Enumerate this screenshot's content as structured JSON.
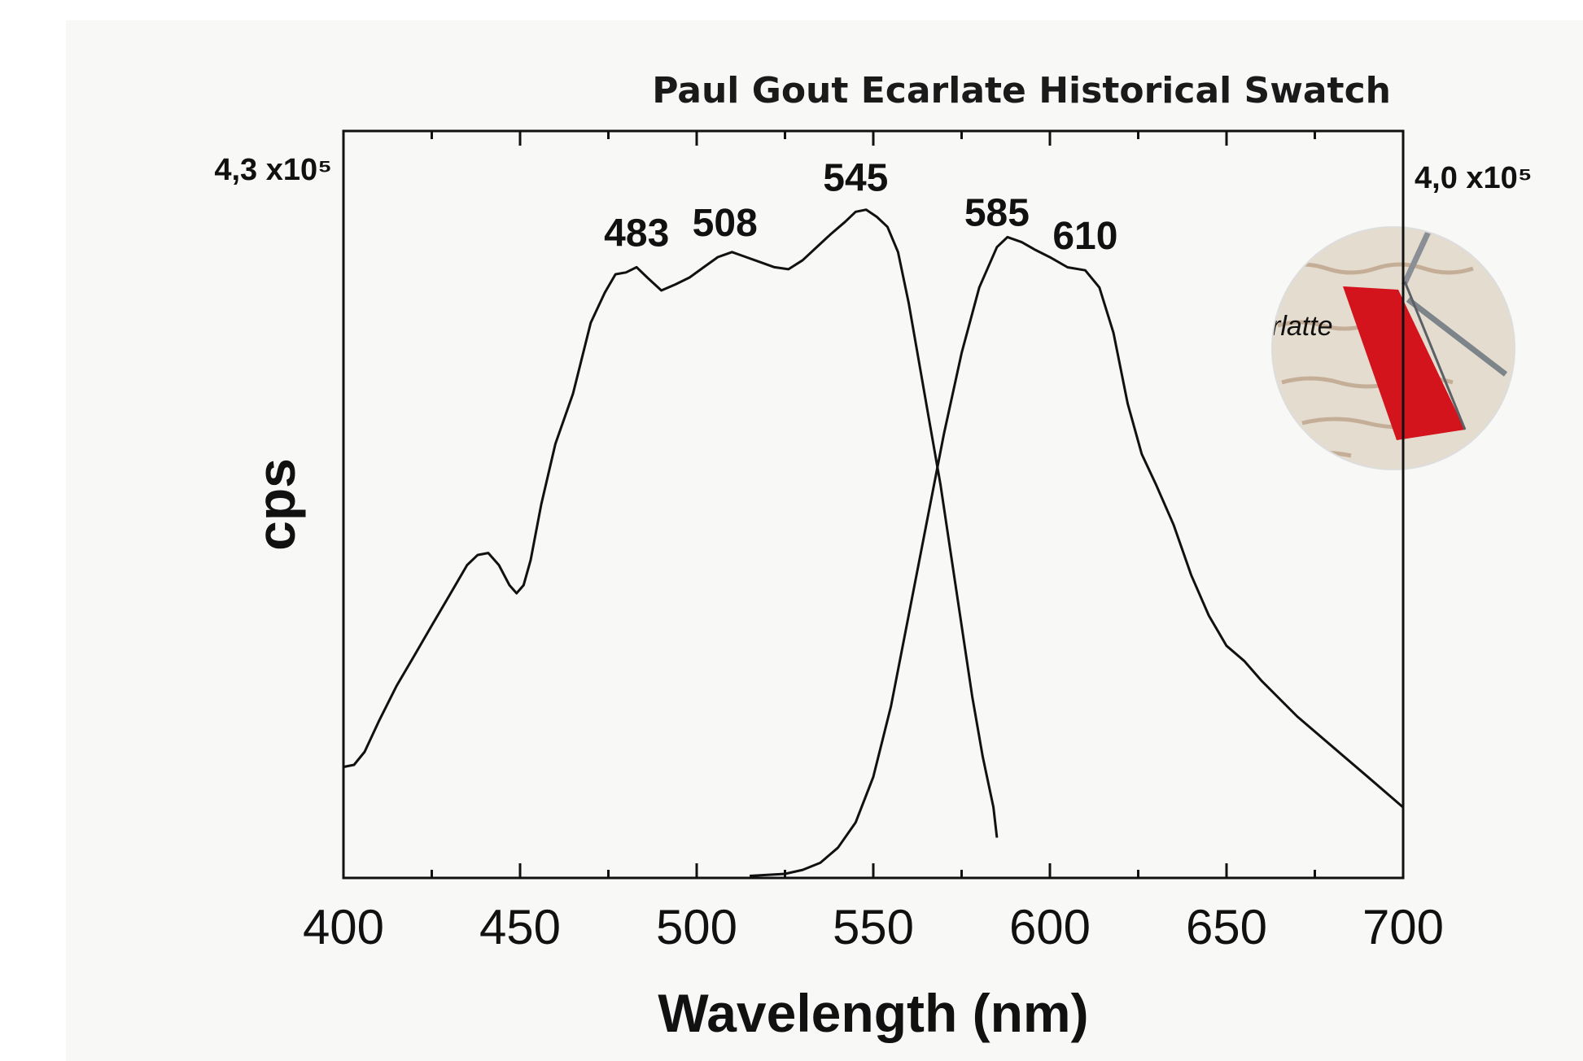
{
  "chart_data": {
    "type": "line",
    "title": "Paul Gout Ecarlate Historical Swatch",
    "x_label": "Wavelength (nm)",
    "y_label": "cps",
    "xlim": [
      400,
      700
    ],
    "xticks": [
      400,
      450,
      500,
      550,
      600,
      650,
      700
    ],
    "xminorticks": [
      425,
      475,
      525,
      575,
      625,
      675
    ],
    "ylim": [
      0,
      430000
    ],
    "yticks": [
      {
        "value": 430000,
        "label": "4,3 x10⁵"
      }
    ],
    "y2lim": [
      0,
      400000
    ],
    "y2ticks": [
      {
        "value": 400000,
        "label": "4,0 x10⁵"
      }
    ],
    "series": [
      {
        "color": "#111111",
        "axis": "y",
        "x": [
          400,
          403,
          406,
          410,
          415,
          420,
          425,
          430,
          435,
          438,
          441,
          444,
          447,
          449,
          451,
          453,
          456,
          460,
          465,
          470,
          474,
          477,
          480,
          483,
          486,
          490,
          494,
          498,
          502,
          506,
          510,
          514,
          518,
          522,
          526,
          530,
          534,
          538,
          542,
          545,
          548,
          551,
          554,
          557,
          560,
          563,
          566,
          569,
          572,
          575,
          578,
          581,
          584,
          585
        ],
        "values": [
          63900,
          65100,
          72600,
          90100,
          110400,
          127800,
          145300,
          162700,
          180100,
          185900,
          187100,
          180100,
          168500,
          163900,
          168500,
          183000,
          215000,
          249900,
          278900,
          319600,
          337000,
          347500,
          348600,
          351600,
          345700,
          338200,
          341700,
          345700,
          351600,
          357400,
          360300,
          357400,
          354500,
          351600,
          350400,
          355600,
          363200,
          370700,
          377700,
          383500,
          384700,
          380600,
          374800,
          360300,
          331200,
          296400,
          261500,
          226600,
          185900,
          145300,
          104600,
          69700,
          40700,
          23200
        ],
        "peaks": [
          483,
          508,
          545
        ]
      },
      {
        "color": "#111111",
        "axis": "y2",
        "x": [
          515,
          525,
          530,
          535,
          540,
          545,
          550,
          555,
          560,
          565,
          570,
          575,
          580,
          585,
          588,
          592,
          596,
          600,
          605,
          610,
          614,
          618,
          622,
          626,
          630,
          635,
          640,
          645,
          650,
          655,
          660,
          670,
          680,
          690,
          700
        ],
        "values": [
          1100,
          2200,
          4300,
          8100,
          16200,
          29700,
          54100,
          91900,
          140500,
          189200,
          237800,
          281100,
          316200,
          337800,
          343200,
          340500,
          336200,
          332400,
          327000,
          325400,
          316200,
          291900,
          254100,
          227000,
          210800,
          189200,
          162200,
          140500,
          124300,
          116200,
          105400,
          86500,
          70300,
          54100,
          37800
        ],
        "peaks": [
          585,
          610
        ]
      }
    ]
  }
}
